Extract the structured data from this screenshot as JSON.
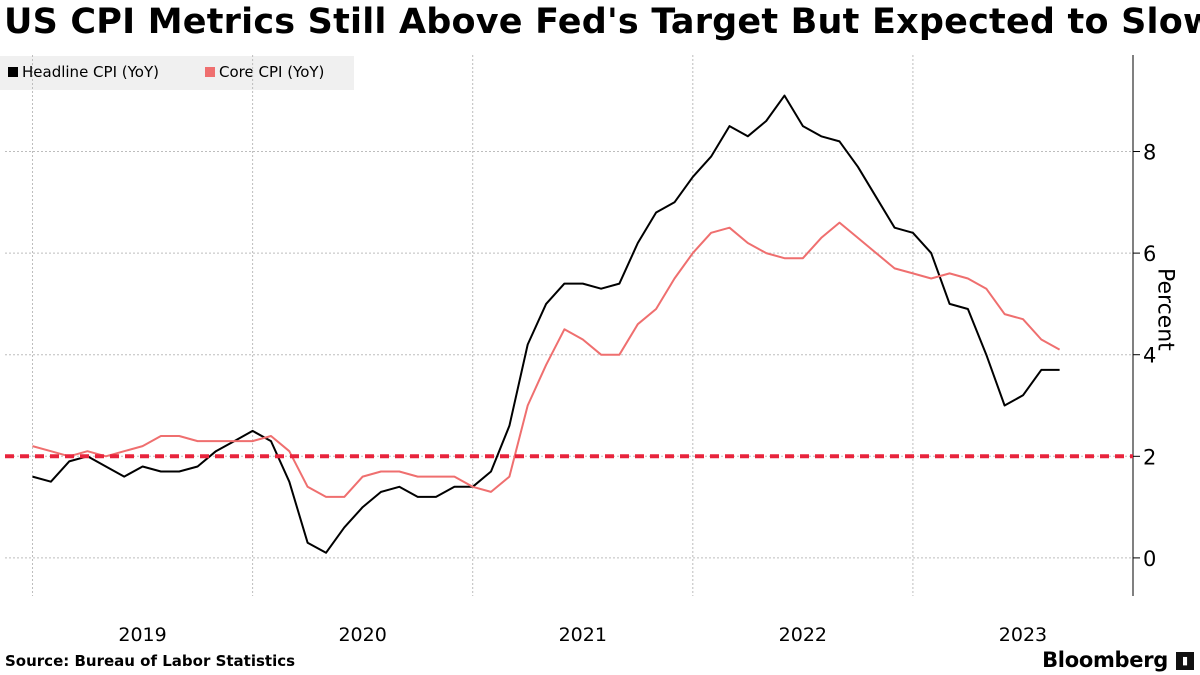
{
  "title": "US CPI Metrics Still Above Fed's Target But Expected to Slow",
  "source": "Source: Bureau of Labor Statistics",
  "brand": "Bloomberg",
  "brand_badge_icon": "bar-chart-icon",
  "chart_data": {
    "type": "line",
    "title": "US CPI Metrics Still Above Fed's Target But Expected to Slow",
    "ylabel": "Percent",
    "xlabel": "",
    "ylim": [
      -0.75,
      9.9
    ],
    "y_ticks": [
      0,
      2,
      4,
      6,
      8
    ],
    "x_ticks": [
      "2019",
      "2020",
      "2021",
      "2022",
      "2023"
    ],
    "grid": true,
    "legend_position": "top-left",
    "x": [
      "2019-01",
      "2019-02",
      "2019-03",
      "2019-04",
      "2019-05",
      "2019-06",
      "2019-07",
      "2019-08",
      "2019-09",
      "2019-10",
      "2019-11",
      "2019-12",
      "2020-01",
      "2020-02",
      "2020-03",
      "2020-04",
      "2020-05",
      "2020-06",
      "2020-07",
      "2020-08",
      "2020-09",
      "2020-10",
      "2020-11",
      "2020-12",
      "2021-01",
      "2021-02",
      "2021-03",
      "2021-04",
      "2021-05",
      "2021-06",
      "2021-07",
      "2021-08",
      "2021-09",
      "2021-10",
      "2021-11",
      "2021-12",
      "2022-01",
      "2022-02",
      "2022-03",
      "2022-04",
      "2022-05",
      "2022-06",
      "2022-07",
      "2022-08",
      "2022-09",
      "2022-10",
      "2022-11",
      "2022-12",
      "2023-01",
      "2023-02",
      "2023-03",
      "2023-04",
      "2023-05",
      "2023-06",
      "2023-07",
      "2023-08",
      "2023-09",
      "2023-10",
      "2023-11",
      "2023-12"
    ],
    "series": [
      {
        "name": "Headline CPI (YoY)",
        "color": "#000000",
        "values": [
          1.6,
          1.5,
          1.9,
          2.0,
          1.8,
          1.6,
          1.8,
          1.7,
          1.7,
          1.8,
          2.1,
          2.3,
          2.5,
          2.3,
          1.5,
          0.3,
          0.1,
          0.6,
          1.0,
          1.3,
          1.4,
          1.2,
          1.2,
          1.4,
          1.4,
          1.7,
          2.6,
          4.2,
          5.0,
          5.4,
          5.4,
          5.3,
          5.4,
          6.2,
          6.8,
          7.0,
          7.5,
          7.9,
          8.5,
          8.3,
          8.6,
          9.1,
          8.5,
          8.3,
          8.2,
          7.7,
          7.1,
          6.5,
          6.4,
          6.0,
          5.0,
          4.9,
          4.0,
          3.0,
          3.2,
          3.7,
          3.7,
          null,
          null,
          null
        ]
      },
      {
        "name": "Core CPI (YoY)",
        "color": "#ef6f6f",
        "values": [
          2.2,
          2.1,
          2.0,
          2.1,
          2.0,
          2.1,
          2.2,
          2.4,
          2.4,
          2.3,
          2.3,
          2.3,
          2.3,
          2.4,
          2.1,
          1.4,
          1.2,
          1.2,
          1.6,
          1.7,
          1.7,
          1.6,
          1.6,
          1.6,
          1.4,
          1.3,
          1.6,
          3.0,
          3.8,
          4.5,
          4.3,
          4.0,
          4.0,
          4.6,
          4.9,
          5.5,
          6.0,
          6.4,
          6.5,
          6.2,
          6.0,
          5.9,
          5.9,
          6.3,
          6.6,
          6.3,
          6.0,
          5.7,
          5.6,
          5.5,
          5.6,
          5.5,
          5.3,
          4.8,
          4.7,
          4.3,
          4.1,
          null,
          null,
          null
        ]
      }
    ],
    "reference_lines": [
      {
        "y": 2,
        "color": "#e8243c",
        "style": "dashed"
      }
    ]
  }
}
